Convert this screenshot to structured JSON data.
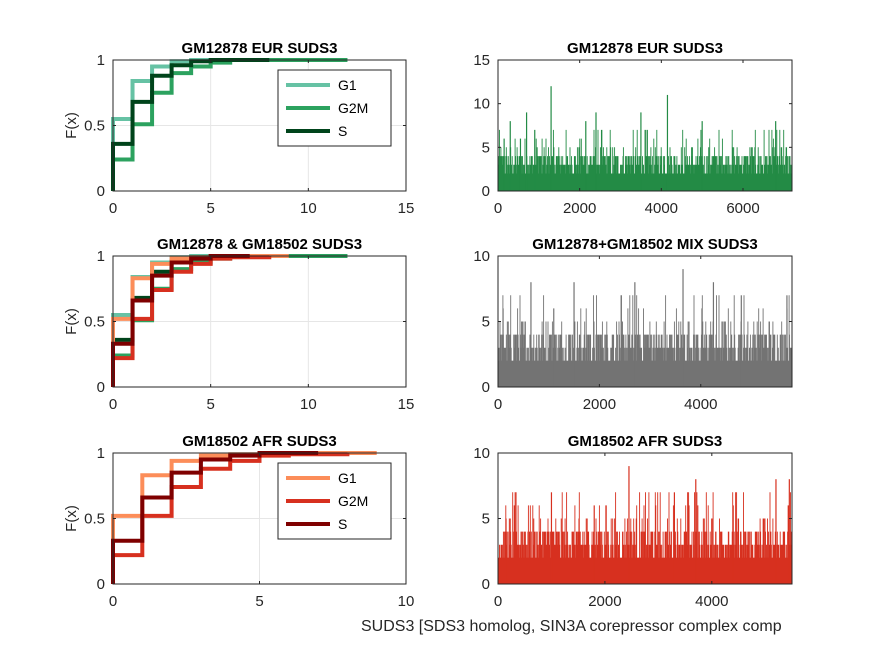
{
  "figure": {
    "xlabel": "SUDS3 [SDS3 homolog, SIN3A corepressor complex comp"
  },
  "chart_data": [
    {
      "type": "line",
      "step": true,
      "title": "GM12878 EUR SUDS3",
      "ylabel": "F(x)",
      "xlim": [
        0,
        15
      ],
      "ylim": [
        0,
        1
      ],
      "xticks": [
        0,
        5,
        10,
        15
      ],
      "yticks": [
        0,
        0.5,
        1
      ],
      "grid": true,
      "legend": "top-right",
      "series": [
        {
          "name": "G1",
          "color": "#66c2a4",
          "x": [
            0,
            1,
            2,
            3,
            4,
            5,
            12
          ],
          "y": [
            0.55,
            0.84,
            0.95,
            0.99,
            1.0,
            1.0,
            1.0
          ]
        },
        {
          "name": "G2M",
          "color": "#2ca25f",
          "x": [
            0,
            1,
            2,
            3,
            4,
            5,
            6,
            12
          ],
          "y": [
            0.24,
            0.51,
            0.75,
            0.9,
            0.95,
            0.98,
            1.0,
            1.0
          ]
        },
        {
          "name": "S",
          "color": "#00441b",
          "x": [
            0,
            1,
            2,
            3,
            4,
            5,
            8
          ],
          "y": [
            0.36,
            0.68,
            0.88,
            0.96,
            0.99,
            1.0,
            1.0
          ]
        }
      ]
    },
    {
      "type": "bar",
      "title": "GM12878 EUR SUDS3",
      "xlim": [
        0,
        7200
      ],
      "ylim": [
        0,
        15
      ],
      "xticks": [
        0,
        2000,
        4000,
        6000
      ],
      "yticks": [
        0,
        5,
        10,
        15
      ],
      "color": "#238b45",
      "n": 7200,
      "baseline": [
        2,
        4
      ],
      "spikes": [
        {
          "x": 1300,
          "y": 12
        },
        {
          "x": 4150,
          "y": 11
        },
        {
          "x": 300,
          "y": 8
        },
        {
          "x": 700,
          "y": 9
        },
        {
          "x": 2150,
          "y": 8
        },
        {
          "x": 2400,
          "y": 9
        },
        {
          "x": 3500,
          "y": 9
        },
        {
          "x": 5000,
          "y": 8
        },
        {
          "x": 6800,
          "y": 8
        },
        {
          "x": 150,
          "y": 6
        },
        {
          "x": 550,
          "y": 6
        },
        {
          "x": 900,
          "y": 7
        }
      ]
    },
    {
      "type": "line",
      "step": true,
      "title": "GM12878 & GM18502 SUDS3",
      "ylabel": "F(x)",
      "xlim": [
        0,
        15
      ],
      "ylim": [
        0,
        1
      ],
      "xticks": [
        0,
        5,
        10,
        15
      ],
      "yticks": [
        0,
        0.5,
        1
      ],
      "grid": true,
      "series": [
        {
          "name": "",
          "color": "#66c2a4",
          "x": [
            0,
            1,
            2,
            3,
            4,
            5,
            12
          ],
          "y": [
            0.55,
            0.84,
            0.95,
            0.99,
            1.0,
            1.0,
            1.0
          ]
        },
        {
          "name": "",
          "color": "#2ca25f",
          "x": [
            0,
            1,
            2,
            3,
            4,
            5,
            6,
            12
          ],
          "y": [
            0.24,
            0.51,
            0.75,
            0.9,
            0.95,
            0.98,
            1.0,
            1.0
          ]
        },
        {
          "name": "",
          "color": "#00441b",
          "x": [
            0,
            1,
            2,
            3,
            4,
            5,
            8
          ],
          "y": [
            0.36,
            0.68,
            0.88,
            0.96,
            0.99,
            1.0,
            1.0
          ]
        },
        {
          "name": "",
          "color": "#fc8d59",
          "x": [
            0,
            1,
            2,
            3,
            4,
            5,
            9
          ],
          "y": [
            0.52,
            0.83,
            0.94,
            0.98,
            0.99,
            1.0,
            1.0
          ]
        },
        {
          "name": "",
          "color": "#d7301f",
          "x": [
            0,
            1,
            2,
            3,
            4,
            5,
            6,
            8
          ],
          "y": [
            0.22,
            0.52,
            0.74,
            0.88,
            0.94,
            0.98,
            0.99,
            1.0
          ]
        },
        {
          "name": "",
          "color": "#7f0000",
          "x": [
            0,
            1,
            2,
            3,
            4,
            5,
            7
          ],
          "y": [
            0.33,
            0.66,
            0.85,
            0.95,
            0.98,
            1.0,
            1.0
          ]
        }
      ]
    },
    {
      "type": "bar",
      "title": "GM12878+GM18502 MIX SUDS3",
      "xlim": [
        0,
        5800
      ],
      "ylim": [
        0,
        10
      ],
      "xticks": [
        0,
        2000,
        4000
      ],
      "yticks": [
        0,
        5,
        10
      ],
      "color": "#737373",
      "n": 5800,
      "baseline": [
        2,
        4
      ],
      "spikes": [
        {
          "x": 650,
          "y": 8
        },
        {
          "x": 1500,
          "y": 8
        },
        {
          "x": 2700,
          "y": 8
        },
        {
          "x": 3650,
          "y": 9
        },
        {
          "x": 4250,
          "y": 8
        },
        {
          "x": 5700,
          "y": 7
        },
        {
          "x": 100,
          "y": 6
        },
        {
          "x": 1100,
          "y": 6
        },
        {
          "x": 4800,
          "y": 7
        }
      ]
    },
    {
      "type": "line",
      "step": true,
      "title": "GM18502 AFR SUDS3",
      "ylabel": "F(x)",
      "xlim": [
        0,
        10
      ],
      "ylim": [
        0,
        1
      ],
      "xticks": [
        0,
        5,
        10
      ],
      "yticks": [
        0,
        0.5,
        1
      ],
      "grid": true,
      "legend": "top-right",
      "series": [
        {
          "name": "G1",
          "color": "#fc8d59",
          "x": [
            0,
            1,
            2,
            3,
            4,
            5,
            9
          ],
          "y": [
            0.52,
            0.83,
            0.94,
            0.98,
            0.99,
            1.0,
            1.0
          ]
        },
        {
          "name": "G2M",
          "color": "#d7301f",
          "x": [
            0,
            1,
            2,
            3,
            4,
            5,
            6,
            8
          ],
          "y": [
            0.22,
            0.52,
            0.74,
            0.88,
            0.94,
            0.98,
            0.99,
            1.0
          ]
        },
        {
          "name": "S",
          "color": "#7f0000",
          "x": [
            0,
            1,
            2,
            3,
            4,
            5,
            7
          ],
          "y": [
            0.33,
            0.66,
            0.85,
            0.95,
            0.98,
            1.0,
            1.0
          ]
        }
      ]
    },
    {
      "type": "bar",
      "title": "GM18502 AFR SUDS3",
      "xlim": [
        0,
        5500
      ],
      "ylim": [
        0,
        10
      ],
      "xticks": [
        0,
        2000,
        4000
      ],
      "yticks": [
        0,
        5,
        10
      ],
      "color": "#d7301f",
      "n": 5500,
      "baseline": [
        2,
        4
      ],
      "spikes": [
        {
          "x": 1000,
          "y": 7
        },
        {
          "x": 2450,
          "y": 9
        },
        {
          "x": 3700,
          "y": 8
        },
        {
          "x": 3300,
          "y": 7
        },
        {
          "x": 5200,
          "y": 8
        },
        {
          "x": 5450,
          "y": 8
        },
        {
          "x": 150,
          "y": 5
        },
        {
          "x": 1800,
          "y": 6
        },
        {
          "x": 4400,
          "y": 6
        }
      ]
    }
  ]
}
